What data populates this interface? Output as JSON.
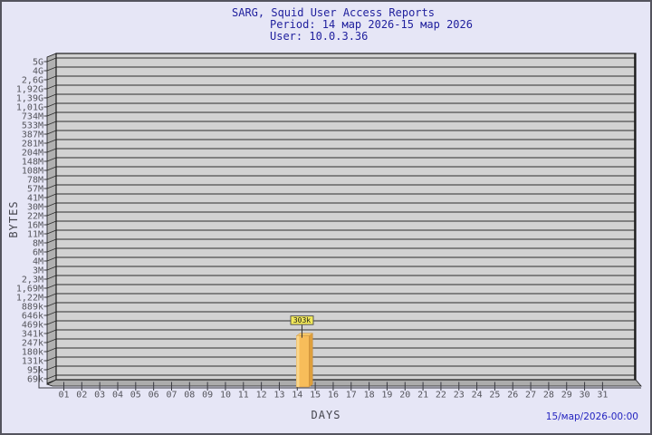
{
  "header": {
    "title": "SARG, Squid User Access Reports",
    "period": "Period: 14 мар 2026-15 мар 2026",
    "user": "User: 10.0.3.36"
  },
  "footer": {
    "date": "15/мар/2026-00:00"
  },
  "colors": {
    "background": "#E6E6F6",
    "page_border": "#54545E",
    "title_text": "#21219E",
    "date_text": "#2424C0",
    "axis_text": "#55555C",
    "axis_line": "#3A3A42",
    "plot_bg": "#D2D2D2",
    "wall": "#B1B1B1",
    "floor": "#ACACAC",
    "gridline": "#2D2D2D",
    "plot_border": "#1A1A1A",
    "bar_front": "#F7BD5A",
    "bar_highlight": "#FBD78C",
    "bar_side": "#DE9F3C",
    "bar_top": "#F6C767",
    "bar_edge": "#C89040",
    "flag_bg": "#F1E85A",
    "flag_border": "#4A4A4A",
    "flag_text": "#1A1A1A"
  },
  "chart_data": {
    "type": "bar",
    "title": "SARG, Squid User Access Reports",
    "subtitle": "Period: 14 мар 2026-15 мар 2026 | User: 10.0.3.36",
    "ylabel": "BYTES",
    "xlabel": "DAYS",
    "y_scale": "log",
    "grid": true,
    "y_tick_labels": [
      "5G",
      "4G",
      "2,6G",
      "1,92G",
      "1,39G",
      "1,01G",
      "734M",
      "533M",
      "387M",
      "281M",
      "204M",
      "148M",
      "108M",
      "78M",
      "57M",
      "41M",
      "30M",
      "22M",
      "16M",
      "11M",
      "8M",
      "6M",
      "4M",
      "3M",
      "2,3M",
      "1,69M",
      "1,22M",
      "889k",
      "646k",
      "469k",
      "341k",
      "247k",
      "180k",
      "131k",
      "95k",
      "69k"
    ],
    "x_tick_labels": [
      "01",
      "02",
      "03",
      "04",
      "05",
      "06",
      "07",
      "08",
      "09",
      "10",
      "11",
      "12",
      "13",
      "14",
      "15",
      "16",
      "17",
      "18",
      "19",
      "20",
      "21",
      "22",
      "23",
      "24",
      "25",
      "26",
      "27",
      "28",
      "29",
      "30",
      "31"
    ],
    "bars": [
      {
        "day": "14",
        "value_label": "303k",
        "value_bytes": 303000
      }
    ]
  }
}
